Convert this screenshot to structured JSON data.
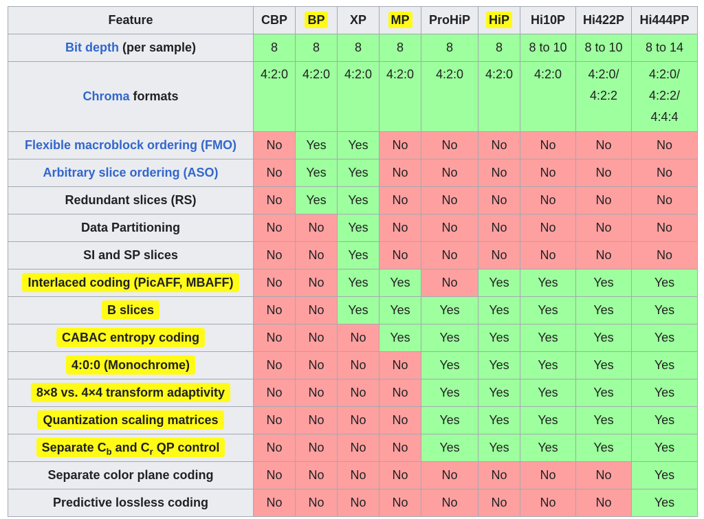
{
  "columns": [
    {
      "label": "CBP",
      "highlighted": false
    },
    {
      "label": "BP",
      "highlighted": true
    },
    {
      "label": "XP",
      "highlighted": false
    },
    {
      "label": "MP",
      "highlighted": true
    },
    {
      "label": "ProHiP",
      "highlighted": false
    },
    {
      "label": "HiP",
      "highlighted": true
    },
    {
      "label": "Hi10P",
      "highlighted": false
    },
    {
      "label": "Hi422P",
      "highlighted": false
    },
    {
      "label": "Hi444PP",
      "highlighted": false
    }
  ],
  "header": {
    "feature_label": "Feature"
  },
  "bit_depth": {
    "link": "Bit depth",
    "suffix": " (per sample)",
    "values": [
      "8",
      "8",
      "8",
      "8",
      "8",
      "8",
      "8 to 10",
      "8 to 10",
      "8 to 14"
    ]
  },
  "chroma": {
    "link": "Chroma",
    "suffix": " formats",
    "values": [
      [
        "4:2:0"
      ],
      [
        "4:2:0"
      ],
      [
        "4:2:0"
      ],
      [
        "4:2:0"
      ],
      [
        "4:2:0"
      ],
      [
        "4:2:0"
      ],
      [
        "4:2:0"
      ],
      [
        "4:2:0/",
        "4:2:2"
      ],
      [
        "4:2:0/",
        "4:2:2/",
        "4:4:4"
      ]
    ]
  },
  "feature_rows": [
    {
      "label": "Flexible macroblock ordering (FMO)",
      "is_link": true,
      "highlighted": false,
      "values": [
        "No",
        "Yes",
        "Yes",
        "No",
        "No",
        "No",
        "No",
        "No",
        "No"
      ]
    },
    {
      "label": "Arbitrary slice ordering (ASO)",
      "is_link": true,
      "highlighted": false,
      "values": [
        "No",
        "Yes",
        "Yes",
        "No",
        "No",
        "No",
        "No",
        "No",
        "No"
      ]
    },
    {
      "label": "Redundant slices (RS)",
      "is_link": false,
      "highlighted": false,
      "values": [
        "No",
        "Yes",
        "Yes",
        "No",
        "No",
        "No",
        "No",
        "No",
        "No"
      ]
    },
    {
      "label": "Data Partitioning",
      "is_link": false,
      "highlighted": false,
      "values": [
        "No",
        "No",
        "Yes",
        "No",
        "No",
        "No",
        "No",
        "No",
        "No"
      ]
    },
    {
      "label": "SI and SP slices",
      "is_link": false,
      "highlighted": false,
      "values": [
        "No",
        "No",
        "Yes",
        "No",
        "No",
        "No",
        "No",
        "No",
        "No"
      ]
    },
    {
      "label": "Interlaced coding (PicAFF, MBAFF)",
      "is_link": false,
      "highlighted": true,
      "values": [
        "No",
        "No",
        "Yes",
        "Yes",
        "No",
        "Yes",
        "Yes",
        "Yes",
        "Yes"
      ]
    },
    {
      "label": "B slices",
      "is_link": false,
      "highlighted": true,
      "values": [
        "No",
        "No",
        "Yes",
        "Yes",
        "Yes",
        "Yes",
        "Yes",
        "Yes",
        "Yes"
      ]
    },
    {
      "label": "CABAC entropy coding",
      "is_link": false,
      "highlighted": true,
      "values": [
        "No",
        "No",
        "No",
        "Yes",
        "Yes",
        "Yes",
        "Yes",
        "Yes",
        "Yes"
      ]
    },
    {
      "label": "4:0:0 (Monochrome)",
      "is_link": false,
      "highlighted": true,
      "values": [
        "No",
        "No",
        "No",
        "No",
        "Yes",
        "Yes",
        "Yes",
        "Yes",
        "Yes"
      ]
    },
    {
      "label": "8×8 vs. 4×4 transform adaptivity",
      "is_link": false,
      "highlighted": true,
      "values": [
        "No",
        "No",
        "No",
        "No",
        "Yes",
        "Yes",
        "Yes",
        "Yes",
        "Yes"
      ]
    },
    {
      "label": "Quantization scaling matrices",
      "is_link": false,
      "highlighted": true,
      "values": [
        "No",
        "No",
        "No",
        "No",
        "Yes",
        "Yes",
        "Yes",
        "Yes",
        "Yes"
      ]
    },
    {
      "label": "Separate C",
      "label_parts": [
        "Separate C",
        "b",
        " and C",
        "r",
        " QP control"
      ],
      "is_link": false,
      "highlighted": true,
      "values": [
        "No",
        "No",
        "No",
        "No",
        "Yes",
        "Yes",
        "Yes",
        "Yes",
        "Yes"
      ]
    },
    {
      "label": "Separate color plane coding",
      "is_link": false,
      "highlighted": false,
      "values": [
        "No",
        "No",
        "No",
        "No",
        "No",
        "No",
        "No",
        "No",
        "Yes"
      ]
    },
    {
      "label": "Predictive lossless coding",
      "is_link": false,
      "highlighted": false,
      "values": [
        "No",
        "No",
        "No",
        "No",
        "No",
        "No",
        "No",
        "No",
        "Yes"
      ]
    }
  ],
  "colors": {
    "yes": "#9eff9e",
    "no": "#ffa0a0",
    "header_bg": "#eaecf0",
    "link": "#3366cc",
    "highlighter": "#fffb17"
  }
}
